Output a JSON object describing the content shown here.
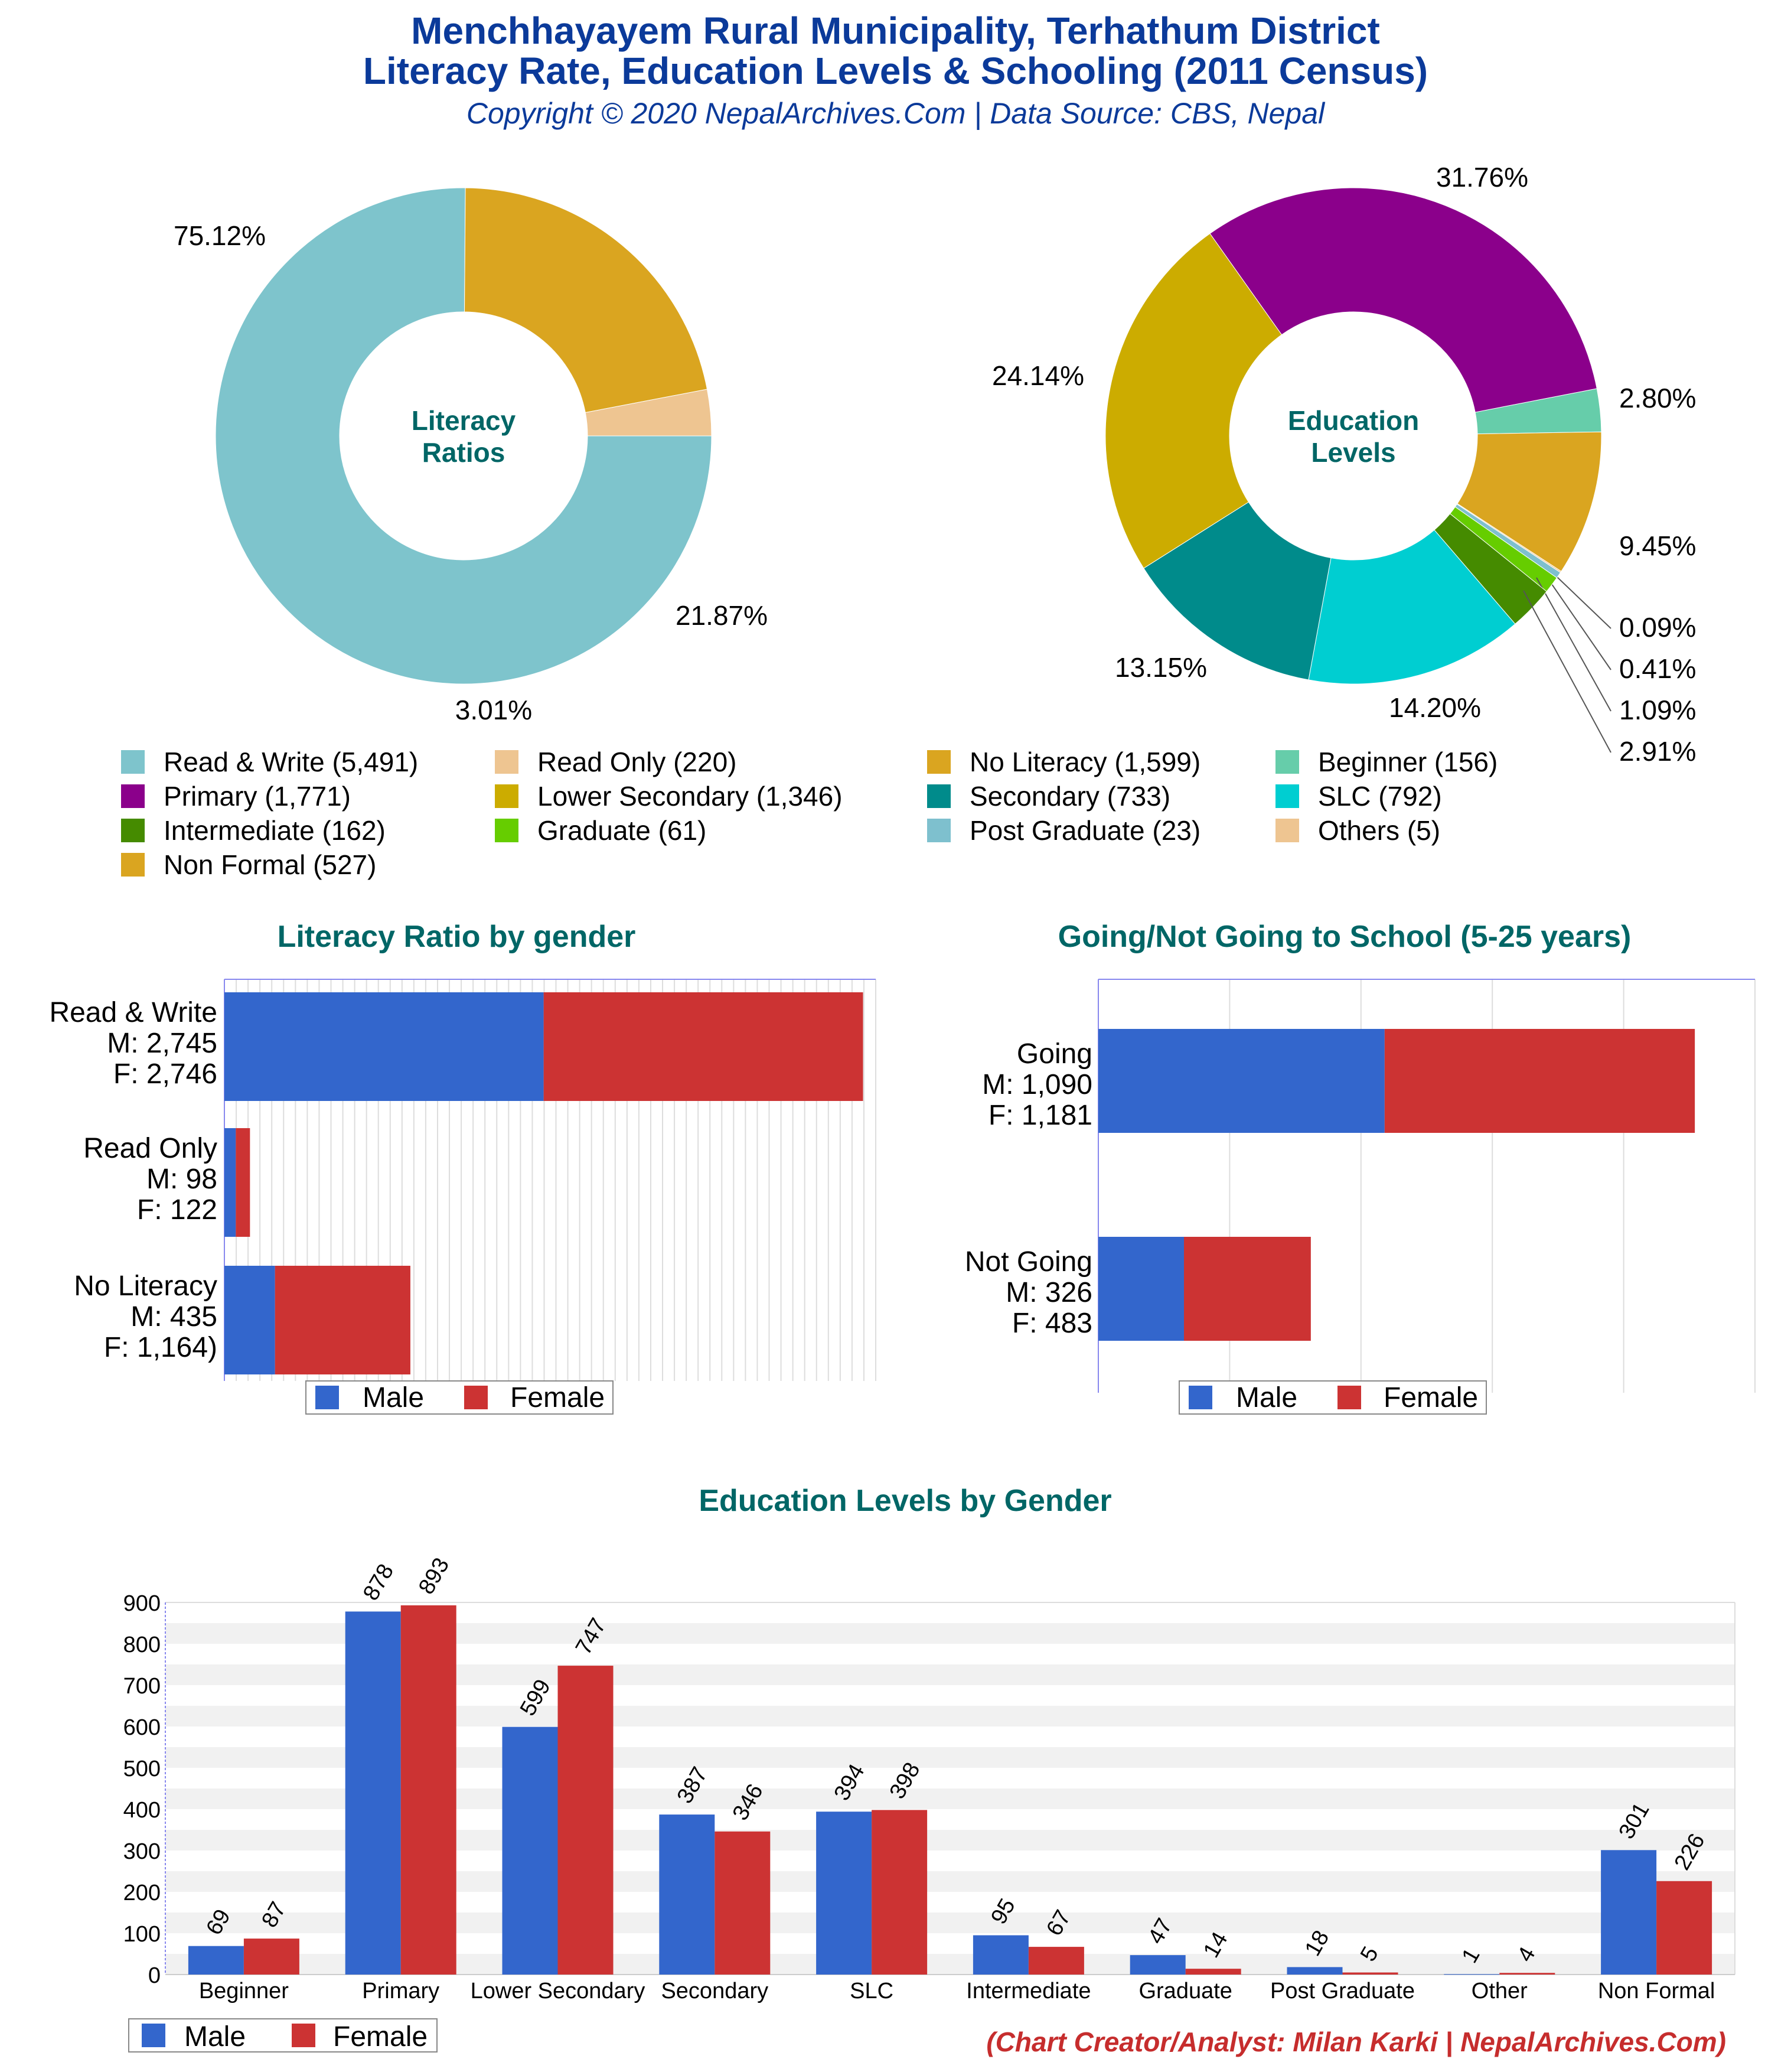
{
  "header": {
    "title_line1": "Menchhayayem Rural Municipality, Terhathum District",
    "title_line2": "Literacy Rate, Education Levels & Schooling (2011 Census)",
    "subtitle": "Copyright © 2020 NepalArchives.Com | Data Source: CBS, Nepal"
  },
  "footer": {
    "credit": "(Chart Creator/Analyst: Milan Karki | NepalArchives.Com)"
  },
  "colors": {
    "male": "#3366cc",
    "female": "#cc3333",
    "chart_title": "#006666",
    "read_write": "#7ec4cc",
    "read_only": "#eec591",
    "no_literacy": "#daa520",
    "beginner": "#66cdaa",
    "primary": "#8b008b",
    "lower_secondary": "#ccac00",
    "secondary": "#008b8b",
    "slc": "#00ced1",
    "intermediate": "#458b00",
    "graduate": "#66cd00",
    "post_graduate": "#7ec0ce",
    "others": "#eec591",
    "non_formal": "#daa520"
  },
  "legend": {
    "items": [
      {
        "label": "Read & Write (5,491)",
        "color": "#7ec4cc"
      },
      {
        "label": "Read Only (220)",
        "color": "#eec591"
      },
      {
        "label": "No Literacy (1,599)",
        "color": "#daa520"
      },
      {
        "label": "Beginner (156)",
        "color": "#66cdaa"
      },
      {
        "label": "Primary (1,771)",
        "color": "#8b008b"
      },
      {
        "label": "Lower Secondary (1,346)",
        "color": "#ccac00"
      },
      {
        "label": "Secondary (733)",
        "color": "#008b8b"
      },
      {
        "label": "SLC (792)",
        "color": "#00ced1"
      },
      {
        "label": "Intermediate (162)",
        "color": "#458b00"
      },
      {
        "label": "Graduate (61)",
        "color": "#66cd00"
      },
      {
        "label": "Post Graduate (23)",
        "color": "#7ec0ce"
      },
      {
        "label": "Others (5)",
        "color": "#eec591"
      },
      {
        "label": "Non Formal (527)",
        "color": "#daa520"
      }
    ]
  },
  "chart_data": [
    {
      "type": "pie",
      "title": "Literacy Ratios",
      "slices": [
        {
          "label": "Read & Write",
          "value": 5491,
          "pct_label": "75.12%",
          "color": "#7ec4cc"
        },
        {
          "label": "No Literacy",
          "value": 1599,
          "pct_label": "21.87%",
          "color": "#daa520"
        },
        {
          "label": "Read Only",
          "value": 220,
          "pct_label": "3.01%",
          "color": "#eec591"
        }
      ]
    },
    {
      "type": "pie",
      "title": "Education Levels",
      "slices": [
        {
          "label": "Beginner",
          "value": 156,
          "pct_label": "2.80%",
          "color": "#66cdaa"
        },
        {
          "label": "Non Formal",
          "value": 527,
          "pct_label": "9.45%",
          "color": "#daa520"
        },
        {
          "label": "Others",
          "value": 5,
          "pct_label": "0.09%",
          "color": "#eec591"
        },
        {
          "label": "Post Graduate",
          "value": 23,
          "pct_label": "0.41%",
          "color": "#7ec0ce"
        },
        {
          "label": "Graduate",
          "value": 61,
          "pct_label": "1.09%",
          "color": "#66cd00"
        },
        {
          "label": "Intermediate",
          "value": 162,
          "pct_label": "2.91%",
          "color": "#458b00"
        },
        {
          "label": "SLC",
          "value": 792,
          "pct_label": "14.20%",
          "color": "#00ced1"
        },
        {
          "label": "Secondary",
          "value": 733,
          "pct_label": "13.15%",
          "color": "#008b8b"
        },
        {
          "label": "Lower Secondary",
          "value": 1346,
          "pct_label": "24.14%",
          "color": "#ccac00"
        },
        {
          "label": "Primary",
          "value": 1771,
          "pct_label": "31.76%",
          "color": "#8b008b"
        }
      ]
    },
    {
      "type": "bar",
      "orientation": "horizontal",
      "stacked": true,
      "title": "Literacy Ratio by gender",
      "categories": [
        {
          "lines": [
            "Read & Write",
            "M: 2,745",
            "F: 2,746"
          ]
        },
        {
          "lines": [
            "Read Only",
            "M: 98",
            "F: 122"
          ]
        },
        {
          "lines": [
            "No Literacy",
            "M: 435",
            "F: 1,164)"
          ]
        }
      ],
      "series": [
        {
          "name": "Male",
          "values": [
            2745,
            98,
            435
          ]
        },
        {
          "name": "Female",
          "values": [
            2746,
            122,
            1164
          ]
        }
      ],
      "xlim": [
        0,
        5600
      ],
      "legend": "bottom"
    },
    {
      "type": "bar",
      "orientation": "horizontal",
      "stacked": true,
      "title": "Going/Not Going to School (5-25 years)",
      "categories": [
        {
          "lines": [
            "Going",
            "M: 1,090",
            "F: 1,181"
          ]
        },
        {
          "lines": [
            "Not Going",
            "M: 326",
            "F: 483"
          ]
        }
      ],
      "series": [
        {
          "name": "Male",
          "values": [
            1090,
            326
          ]
        },
        {
          "name": "Female",
          "values": [
            1181,
            483
          ]
        }
      ],
      "xlim": [
        0,
        2500
      ],
      "legend": "bottom"
    },
    {
      "type": "bar",
      "orientation": "vertical",
      "title": "Education Levels by Gender",
      "categories": [
        "Beginner",
        "Primary",
        "Lower Secondary",
        "Secondary",
        "SLC",
        "Intermediate",
        "Graduate",
        "Post Graduate",
        "Other",
        "Non Formal"
      ],
      "series": [
        {
          "name": "Male",
          "values": [
            69,
            878,
            599,
            387,
            394,
            95,
            47,
            18,
            1,
            301
          ],
          "labels": [
            "69",
            "878",
            "599",
            "387",
            "394",
            "95",
            "47",
            "18",
            "1",
            "301"
          ]
        },
        {
          "name": "Female",
          "values": [
            87,
            893,
            747,
            346,
            398,
            67,
            14,
            5,
            4,
            226
          ],
          "labels": [
            "87",
            "893",
            "747",
            "346",
            "398",
            "67",
            "14",
            "5",
            "4",
            "226"
          ]
        }
      ],
      "yticks": [
        "0",
        "100",
        "200",
        "300",
        "400",
        "500",
        "600",
        "700",
        "800",
        "900"
      ],
      "ylim": [
        0,
        900
      ],
      "legend": "bottom-left"
    }
  ]
}
